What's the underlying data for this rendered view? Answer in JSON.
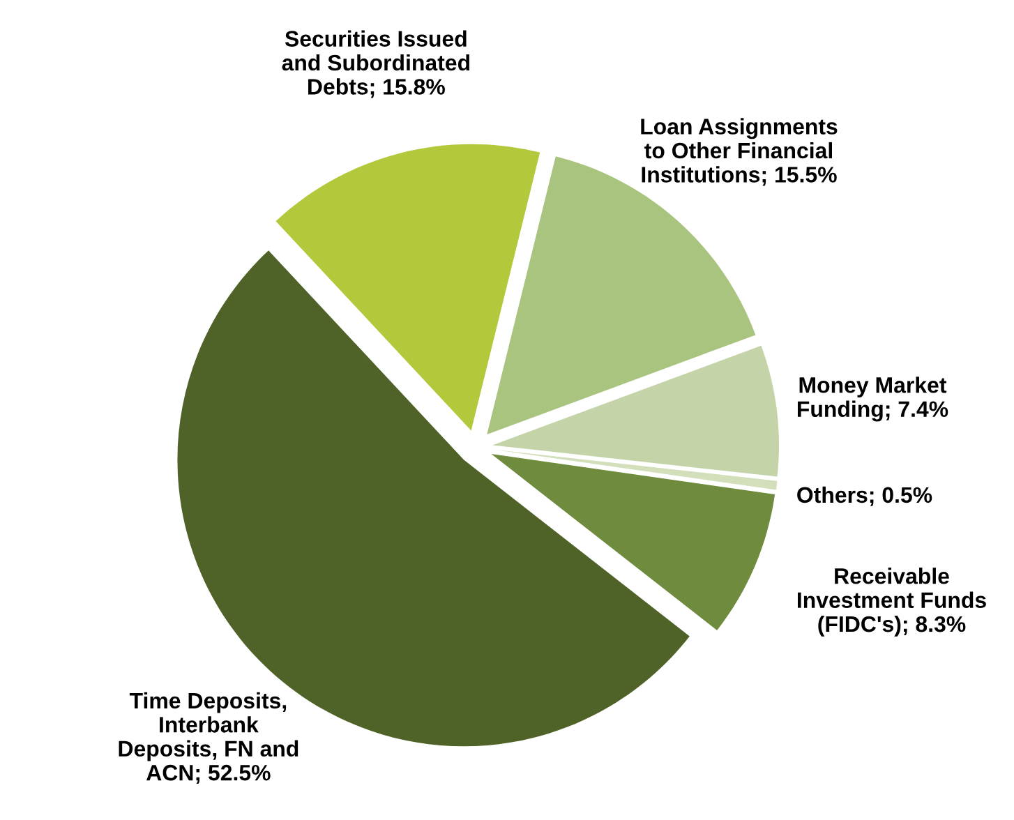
{
  "chart_data": {
    "type": "pie",
    "categories": [
      "Receivable\nInvestment Funds\n(FIDC's)",
      "Others",
      "Money Market\nFunding",
      "Loan Assignments\nto Other Financial\nInstitutions",
      "Securities Issued\nand Subordinated\nDebts",
      "Time Deposits,\nInterbank\nDeposits, FN and\nACN"
    ],
    "values": [
      8.3,
      0.5,
      7.4,
      15.5,
      15.8,
      52.5
    ],
    "value_labels": [
      "8.3%",
      "0.5%",
      "7.4%",
      "15.5%",
      "15.8%",
      "52.5%"
    ],
    "colors": [
      "#6f8c3e",
      "#d3deba",
      "#c4d4a8",
      "#a9c47f",
      "#b3c83b",
      "#4f6228"
    ],
    "legend": false
  }
}
